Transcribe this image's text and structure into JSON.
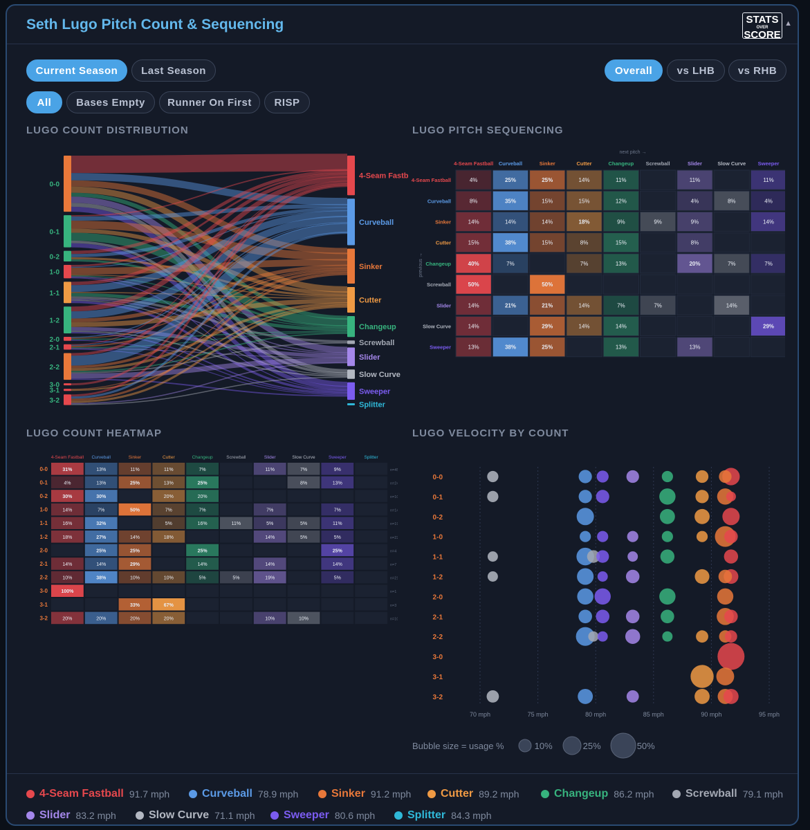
{
  "title": "Seth Lugo Pitch Count & Sequencing",
  "logo": {
    "line1": "STATS",
    "line2": "OVER",
    "line3": "SCORE"
  },
  "season_tabs": [
    {
      "label": "Current Season",
      "active": true
    },
    {
      "label": "Last Season",
      "active": false
    }
  ],
  "split_tabs": [
    {
      "label": "Overall",
      "active": true
    },
    {
      "label": "vs LHB",
      "active": false
    },
    {
      "label": "vs RHB",
      "active": false
    }
  ],
  "base_tabs": [
    {
      "label": "All",
      "active": true
    },
    {
      "label": "Bases Empty",
      "active": false
    },
    {
      "label": "Runner On First",
      "active": false
    },
    {
      "label": "RISP",
      "active": false
    }
  ],
  "sections": {
    "count_distribution": "LUGO COUNT DISTRIBUTION",
    "pitch_sequencing": "LUGO PITCH SEQUENCING",
    "count_heatmap": "LUGO COUNT HEATMAP",
    "velocity_by_count": "LUGO VELOCITY BY COUNT"
  },
  "pitches": [
    {
      "name": "4-Seam Fastball",
      "mph": "91.7 mph",
      "color": "#e5484d"
    },
    {
      "name": "Curveball",
      "mph": "78.9 mph",
      "color": "#5b9ae6"
    },
    {
      "name": "Sinker",
      "mph": "91.2 mph",
      "color": "#e8783a"
    },
    {
      "name": "Cutter",
      "mph": "89.2 mph",
      "color": "#ef9a44"
    },
    {
      "name": "Changeup",
      "mph": "86.2 mph",
      "color": "#37b37e"
    },
    {
      "name": "Screwball",
      "mph": "79.1 mph",
      "color": "#a3a8b3"
    },
    {
      "name": "Slider",
      "mph": "83.2 mph",
      "color": "#a487ea"
    },
    {
      "name": "Slow Curve",
      "mph": "71.1 mph",
      "color": "#b3b8c2"
    },
    {
      "name": "Sweeper",
      "mph": "80.6 mph",
      "color": "#7b5cf0"
    },
    {
      "name": "Splitter",
      "mph": "84.3 mph",
      "color": "#2fb8d8"
    }
  ],
  "chart_data": [
    {
      "type": "sankey",
      "title": "LUGO COUNT DISTRIBUTION",
      "left_nodes": [
        {
          "label": "0-0",
          "value": 21
        },
        {
          "label": "0-1",
          "value": 12
        },
        {
          "label": "0-2",
          "value": 4
        },
        {
          "label": "1-0",
          "value": 5
        },
        {
          "label": "1-1",
          "value": 8
        },
        {
          "label": "1-2",
          "value": 10
        },
        {
          "label": "2-0",
          "value": 1.5
        },
        {
          "label": "2-1",
          "value": 2
        },
        {
          "label": "2-2",
          "value": 10
        },
        {
          "label": "3-0",
          "value": 0.6
        },
        {
          "label": "3-1",
          "value": 0.8
        },
        {
          "label": "3-2",
          "value": 4
        }
      ],
      "right_nodes": [
        {
          "label": "4-Seam Fastb",
          "value": 17
        },
        {
          "label": "Curveball",
          "value": 20
        },
        {
          "label": "Sinker",
          "value": 15
        },
        {
          "label": "Cutter",
          "value": 11
        },
        {
          "label": "Changeup",
          "value": 9
        },
        {
          "label": "Screwball",
          "value": 1.5
        },
        {
          "label": "Slider",
          "value": 8
        },
        {
          "label": "Slow Curve",
          "value": 4
        },
        {
          "label": "Sweeper",
          "value": 7.5
        },
        {
          "label": "Splitter",
          "value": 0.6
        }
      ]
    },
    {
      "type": "heatmap",
      "title": "LUGO PITCH SEQUENCING",
      "x_axis_label": "next pitch →",
      "y_axis_label": "previous →",
      "columns": [
        "4-Seam Fastball",
        "Curveball",
        "Sinker",
        "Cutter",
        "Changeup",
        "Screwball",
        "Slider",
        "Slow Curve",
        "Sweeper"
      ],
      "rows": [
        "4-Seam Fastball",
        "Curveball",
        "Sinker",
        "Cutter",
        "Changeup",
        "Screwball",
        "Slider",
        "Slow Curve",
        "Sweeper"
      ],
      "values": [
        [
          4,
          25,
          25,
          14,
          11,
          null,
          11,
          null,
          11
        ],
        [
          8,
          35,
          15,
          15,
          12,
          null,
          4,
          8,
          4
        ],
        [
          14,
          14,
          14,
          18,
          9,
          9,
          9,
          null,
          14
        ],
        [
          15,
          38,
          15,
          8,
          15,
          null,
          8,
          null,
          null
        ],
        [
          40,
          7,
          null,
          7,
          13,
          null,
          20,
          7,
          7
        ],
        [
          50,
          null,
          50,
          null,
          null,
          null,
          null,
          null,
          null
        ],
        [
          14,
          21,
          21,
          14,
          7,
          7,
          null,
          14,
          null
        ],
        [
          14,
          null,
          29,
          14,
          14,
          null,
          null,
          null,
          29
        ],
        [
          13,
          38,
          25,
          null,
          13,
          null,
          13,
          null,
          null
        ]
      ]
    },
    {
      "type": "heatmap",
      "title": "LUGO COUNT HEATMAP",
      "columns": [
        "4-Seam Fastball",
        "Curveball",
        "Sinker",
        "Cutter",
        "Changeup",
        "Screwball",
        "Slider",
        "Slow Curve",
        "Sweeper",
        "Splitter"
      ],
      "rows": [
        "0-0",
        "0-1",
        "0-2",
        "1-0",
        "1-1",
        "1-2",
        "2-0",
        "2-1",
        "2-2",
        "3-0",
        "3-1",
        "3-2"
      ],
      "row_counts": [
        "n=45",
        "n=24",
        "n=10",
        "n=14",
        "n=19",
        "n=22",
        "n=4",
        "n=7",
        "n=21",
        "n=1",
        "n=3",
        "n=10"
      ],
      "values": [
        [
          31,
          13,
          11,
          11,
          7,
          null,
          11,
          7,
          9,
          null
        ],
        [
          4,
          13,
          25,
          13,
          25,
          null,
          null,
          8,
          13,
          null
        ],
        [
          30,
          30,
          null,
          20,
          20,
          null,
          null,
          null,
          null,
          null
        ],
        [
          14,
          7,
          50,
          7,
          7,
          null,
          7,
          null,
          7,
          null
        ],
        [
          16,
          32,
          null,
          5,
          16,
          11,
          5,
          5,
          11,
          null
        ],
        [
          18,
          27,
          14,
          18,
          null,
          null,
          14,
          5,
          5,
          null
        ],
        [
          null,
          25,
          25,
          null,
          25,
          null,
          null,
          null,
          25,
          null
        ],
        [
          14,
          14,
          29,
          null,
          14,
          null,
          14,
          null,
          14,
          null
        ],
        [
          10,
          38,
          10,
          10,
          5,
          5,
          19,
          null,
          5,
          null
        ],
        [
          100,
          null,
          null,
          null,
          null,
          null,
          null,
          null,
          null,
          null
        ],
        [
          null,
          null,
          33,
          67,
          null,
          null,
          null,
          null,
          null,
          null
        ],
        [
          20,
          20,
          20,
          20,
          null,
          null,
          10,
          10,
          null,
          null
        ]
      ]
    },
    {
      "type": "scatter",
      "title": "LUGO VELOCITY BY COUNT",
      "x_ticks": [
        "70 mph",
        "75 mph",
        "80 mph",
        "85 mph",
        "90 mph",
        "95 mph"
      ],
      "xlim": [
        70,
        95
      ],
      "y_categories": [
        "0-0",
        "0-1",
        "0-2",
        "1-0",
        "1-1",
        "1-2",
        "2-0",
        "2-1",
        "2-2",
        "3-0",
        "3-1",
        "3-2"
      ],
      "bubble_legend_label": "Bubble size = usage %",
      "bubble_legend": [
        "10%",
        "25%",
        "50%"
      ],
      "points": [
        [
          "0-0",
          71.1,
          7,
          7
        ],
        [
          "0-0",
          79.1,
          13,
          1
        ],
        [
          "0-0",
          80.6,
          9,
          8
        ],
        [
          "0-0",
          83.2,
          11,
          6
        ],
        [
          "0-0",
          86.2,
          7,
          4
        ],
        [
          "0-0",
          89.2,
          11,
          3
        ],
        [
          "0-0",
          91.2,
          11,
          2
        ],
        [
          "0-0",
          91.7,
          31,
          0
        ],
        [
          "0-1",
          71.1,
          7,
          7
        ],
        [
          "0-1",
          79.1,
          13,
          1
        ],
        [
          "0-1",
          80.6,
          13,
          8
        ],
        [
          "0-1",
          86.2,
          25,
          4
        ],
        [
          "0-1",
          89.2,
          13,
          3
        ],
        [
          "0-1",
          91.2,
          25,
          2
        ],
        [
          "0-1",
          91.7,
          4,
          0
        ],
        [
          "0-2",
          79.1,
          30,
          1
        ],
        [
          "0-2",
          86.2,
          20,
          4
        ],
        [
          "0-2",
          89.2,
          20,
          3
        ],
        [
          "0-2",
          91.7,
          30,
          0
        ],
        [
          "1-0",
          79.1,
          7,
          1
        ],
        [
          "1-0",
          80.6,
          7,
          8
        ],
        [
          "1-0",
          83.2,
          7,
          6
        ],
        [
          "1-0",
          86.2,
          7,
          4
        ],
        [
          "1-0",
          89.2,
          7,
          3
        ],
        [
          "1-0",
          91.2,
          50,
          2
        ],
        [
          "1-0",
          91.7,
          14,
          0
        ],
        [
          "1-1",
          71.1,
          5,
          7
        ],
        [
          "1-1",
          79.1,
          32,
          1
        ],
        [
          "1-1",
          79.8,
          11,
          5
        ],
        [
          "1-1",
          80.6,
          11,
          8
        ],
        [
          "1-1",
          83.2,
          5,
          6
        ],
        [
          "1-1",
          86.2,
          16,
          4
        ],
        [
          "1-1",
          91.7,
          16,
          0
        ],
        [
          "1-2",
          71.1,
          5,
          7
        ],
        [
          "1-2",
          79.1,
          27,
          1
        ],
        [
          "1-2",
          80.6,
          5,
          8
        ],
        [
          "1-2",
          83.2,
          14,
          6
        ],
        [
          "1-2",
          89.2,
          18,
          3
        ],
        [
          "1-2",
          91.2,
          14,
          2
        ],
        [
          "1-2",
          91.7,
          18,
          0
        ],
        [
          "2-0",
          79.1,
          25,
          1
        ],
        [
          "2-0",
          80.6,
          25,
          8
        ],
        [
          "2-0",
          86.2,
          25,
          4
        ],
        [
          "2-0",
          91.2,
          25,
          2
        ],
        [
          "2-1",
          79.1,
          14,
          1
        ],
        [
          "2-1",
          80.6,
          14,
          8
        ],
        [
          "2-1",
          83.2,
          14,
          6
        ],
        [
          "2-1",
          86.2,
          14,
          4
        ],
        [
          "2-1",
          91.2,
          29,
          2
        ],
        [
          "2-1",
          91.7,
          14,
          0
        ],
        [
          "2-2",
          79.1,
          38,
          1
        ],
        [
          "2-2",
          79.8,
          5,
          5
        ],
        [
          "2-2",
          80.6,
          5,
          8
        ],
        [
          "2-2",
          83.2,
          19,
          6
        ],
        [
          "2-2",
          86.2,
          5,
          4
        ],
        [
          "2-2",
          89.2,
          10,
          3
        ],
        [
          "2-2",
          91.2,
          10,
          2
        ],
        [
          "2-2",
          91.7,
          10,
          0
        ],
        [
          "3-0",
          91.7,
          100,
          0
        ],
        [
          "3-1",
          89.2,
          67,
          3
        ],
        [
          "3-1",
          91.2,
          33,
          2
        ],
        [
          "3-2",
          71.1,
          10,
          7
        ],
        [
          "3-2",
          79.1,
          20,
          1
        ],
        [
          "3-2",
          83.2,
          10,
          6
        ],
        [
          "3-2",
          89.2,
          20,
          3
        ],
        [
          "3-2",
          91.2,
          20,
          2
        ],
        [
          "3-2",
          91.7,
          20,
          0
        ]
      ]
    }
  ]
}
